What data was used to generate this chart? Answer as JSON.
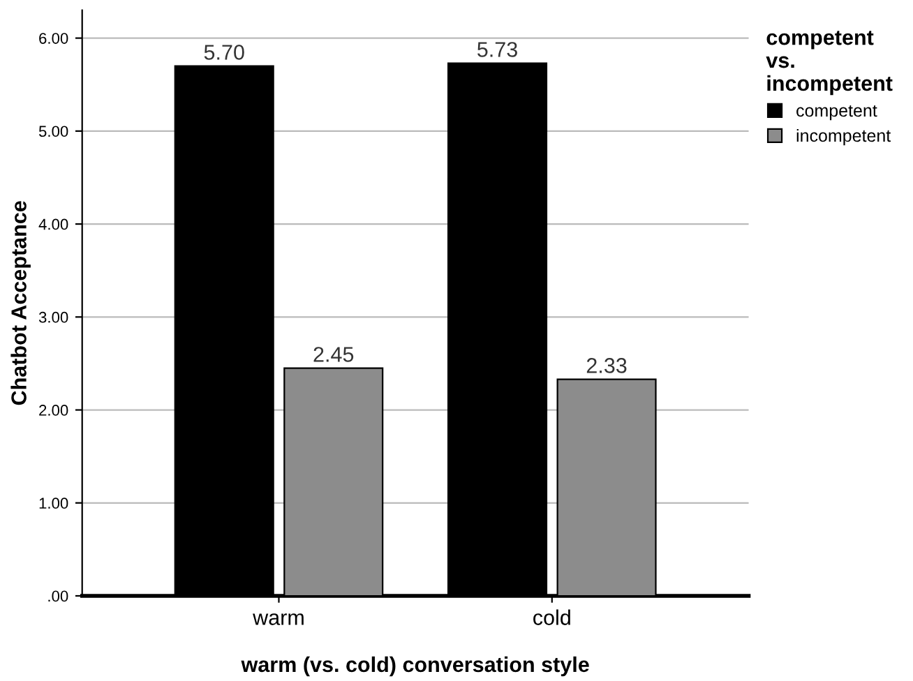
{
  "chart_data": {
    "type": "bar",
    "xlabel": "warm (vs. cold) conversation style",
    "ylabel": "Chatbot Acceptance",
    "legend_title": "competent\nvs.\nincompetent",
    "categories": [
      "warm",
      "cold"
    ],
    "series": [
      {
        "name": "competent",
        "color": "#000000",
        "values": [
          5.7,
          5.73
        ],
        "value_labels": [
          "5.70",
          "5.73"
        ]
      },
      {
        "name": "incompetent",
        "color": "#8c8c8c",
        "values": [
          2.45,
          2.33
        ],
        "value_labels": [
          "2.45",
          "2.33"
        ]
      }
    ],
    "ylim": [
      0,
      6.3
    ],
    "yticks": [
      {
        "value": 0,
        "label": ".00"
      },
      {
        "value": 1,
        "label": "1.00"
      },
      {
        "value": 2,
        "label": "2.00"
      },
      {
        "value": 3,
        "label": "3.00"
      },
      {
        "value": 4,
        "label": "4.00"
      },
      {
        "value": 5,
        "label": "5.00"
      },
      {
        "value": 6,
        "label": "6.00"
      }
    ],
    "grid": "y",
    "legend": "top right"
  }
}
